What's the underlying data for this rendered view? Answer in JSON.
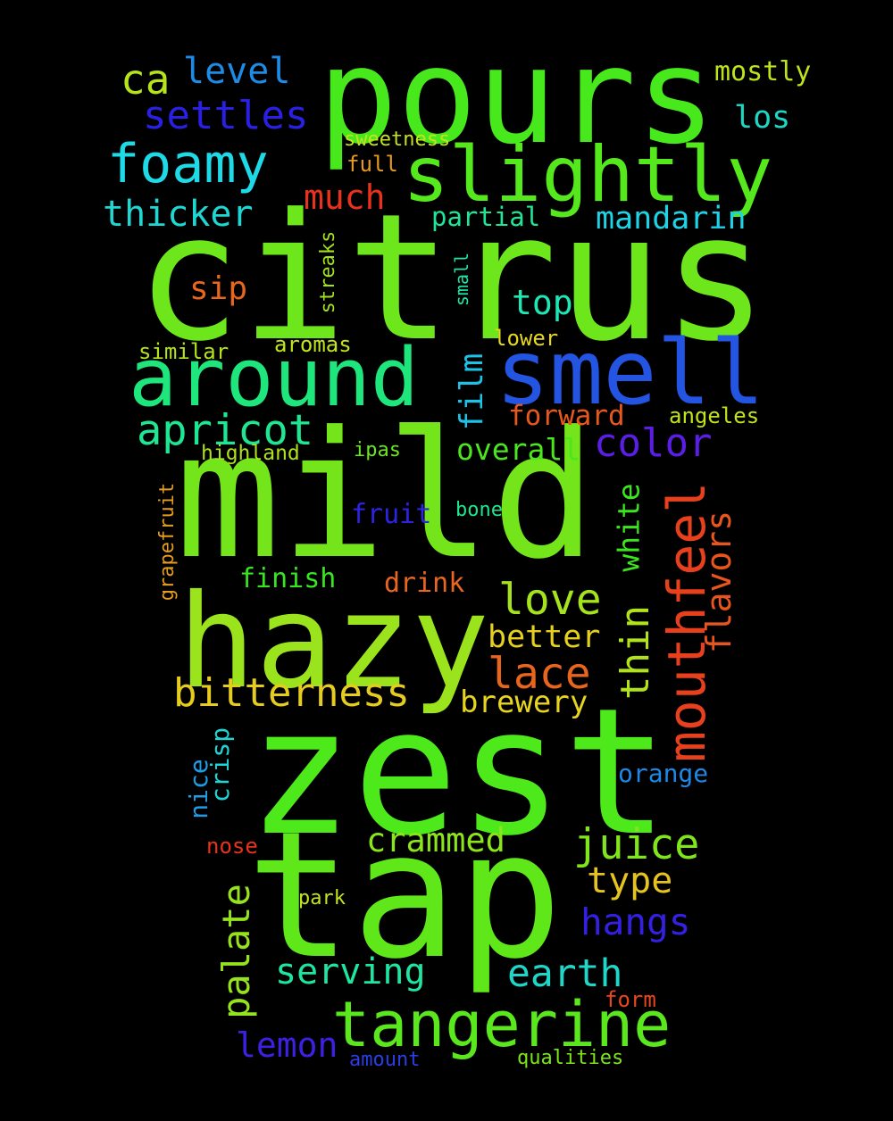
{
  "words": [
    {
      "text": "citrus",
      "color": "#6ee61c"
    },
    {
      "text": "mild",
      "color": "#74e51a"
    },
    {
      "text": "zest",
      "color": "#4ee91a"
    },
    {
      "text": "tap",
      "color": "#5fe71a"
    },
    {
      "text": "pours",
      "color": "#47e91c"
    },
    {
      "text": "hazy",
      "color": "#9be31c"
    },
    {
      "text": "slightly",
      "color": "#55e81c"
    },
    {
      "text": "smell",
      "color": "#2354e2"
    },
    {
      "text": "around",
      "color": "#1ee67c"
    },
    {
      "text": "tangerine",
      "color": "#5ae71d"
    },
    {
      "text": "mouthfeel",
      "color": "#e8401d"
    },
    {
      "text": "foamy",
      "color": "#1ed9e6"
    },
    {
      "text": "apricot",
      "color": "#1ee692"
    },
    {
      "text": "bitterness",
      "color": "#e6cc1e"
    },
    {
      "text": "settles",
      "color": "#2a20e3"
    },
    {
      "text": "juice",
      "color": "#80e51c"
    },
    {
      "text": "color",
      "color": "#5b1ee6"
    },
    {
      "text": "lace",
      "color": "#e8651d"
    },
    {
      "text": "love",
      "color": "#a5e31c"
    },
    {
      "text": "thicker",
      "color": "#1ed6d2"
    },
    {
      "text": "earth",
      "color": "#1ed7c8"
    },
    {
      "text": "serving",
      "color": "#1ee6a0"
    },
    {
      "text": "palate",
      "color": "#95e31c"
    },
    {
      "text": "flavors",
      "color": "#e8551d"
    },
    {
      "text": "thin",
      "color": "#b0e31c"
    },
    {
      "text": "hangs",
      "color": "#3320e3"
    },
    {
      "text": "crammed",
      "color": "#8ce51c"
    },
    {
      "text": "lemon",
      "color": "#3c20e3"
    },
    {
      "text": "mandarin",
      "color": "#1ed3e6"
    },
    {
      "text": "level",
      "color": "#1e8ce6"
    },
    {
      "text": "much",
      "color": "#e8321d"
    },
    {
      "text": "top",
      "color": "#1ee6b5"
    },
    {
      "text": "ca",
      "color": "#b6e31c"
    },
    {
      "text": "better",
      "color": "#e6d01e"
    },
    {
      "text": "film",
      "color": "#1ec2e6"
    },
    {
      "text": "brewery",
      "color": "#e6d41e"
    },
    {
      "text": "type",
      "color": "#e6c41e"
    },
    {
      "text": "overall",
      "color": "#4ae61e"
    },
    {
      "text": "white",
      "color": "#3ce61e"
    },
    {
      "text": "forward",
      "color": "#e8581d"
    },
    {
      "text": "los",
      "color": "#1ed6c4"
    },
    {
      "text": "sip",
      "color": "#e8661d"
    },
    {
      "text": "mostly",
      "color": "#bde31c"
    },
    {
      "text": "finish",
      "color": "#36e61e"
    },
    {
      "text": "fruit",
      "color": "#2e22e3"
    },
    {
      "text": "drink",
      "color": "#e8661d"
    },
    {
      "text": "partial",
      "color": "#1ee696"
    },
    {
      "text": "crisp",
      "color": "#1ed6d6"
    },
    {
      "text": "nice",
      "color": "#1e9ce6"
    },
    {
      "text": "orange",
      "color": "#1e88e6"
    },
    {
      "text": "angeles",
      "color": "#c0e31c"
    },
    {
      "text": "highland",
      "color": "#aee31c"
    },
    {
      "text": "streaks",
      "color": "#a0e31c"
    },
    {
      "text": "aromas",
      "color": "#c4e31c"
    },
    {
      "text": "similar",
      "color": "#b4e31c"
    },
    {
      "text": "full",
      "color": "#e69a1e"
    },
    {
      "text": "sweetness",
      "color": "#c4e31c"
    },
    {
      "text": "small",
      "color": "#1ee6a8"
    },
    {
      "text": "lower",
      "color": "#e6d81e"
    },
    {
      "text": "ipas",
      "color": "#6ae61e"
    },
    {
      "text": "bone",
      "color": "#1ee68c"
    },
    {
      "text": "grapefruit",
      "color": "#e69c1e"
    },
    {
      "text": "nose",
      "color": "#e8321d"
    },
    {
      "text": "park",
      "color": "#c4e31c"
    },
    {
      "text": "form",
      "color": "#e8461d"
    },
    {
      "text": "amount",
      "color": "#2c3ee3"
    },
    {
      "text": "qualities",
      "color": "#7ae51c"
    }
  ]
}
